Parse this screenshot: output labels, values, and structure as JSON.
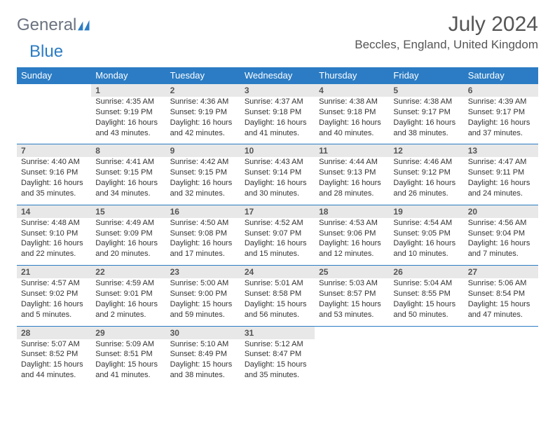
{
  "logo": {
    "part1": "General",
    "part2": "Blue"
  },
  "title": "July 2024",
  "location": "Beccles, England, United Kingdom",
  "colors": {
    "header_bg": "#2b7cc4",
    "header_text": "#ffffff",
    "daynum_bg": "#e8e8e8",
    "divider": "#2b7cc4",
    "text": "#333333",
    "title_text": "#555555"
  },
  "day_headers": [
    "Sunday",
    "Monday",
    "Tuesday",
    "Wednesday",
    "Thursday",
    "Friday",
    "Saturday"
  ],
  "weeks": [
    [
      null,
      {
        "n": "1",
        "sr": "4:35 AM",
        "ss": "9:19 PM",
        "dl": "16 hours and 43 minutes."
      },
      {
        "n": "2",
        "sr": "4:36 AM",
        "ss": "9:19 PM",
        "dl": "16 hours and 42 minutes."
      },
      {
        "n": "3",
        "sr": "4:37 AM",
        "ss": "9:18 PM",
        "dl": "16 hours and 41 minutes."
      },
      {
        "n": "4",
        "sr": "4:38 AM",
        "ss": "9:18 PM",
        "dl": "16 hours and 40 minutes."
      },
      {
        "n": "5",
        "sr": "4:38 AM",
        "ss": "9:17 PM",
        "dl": "16 hours and 38 minutes."
      },
      {
        "n": "6",
        "sr": "4:39 AM",
        "ss": "9:17 PM",
        "dl": "16 hours and 37 minutes."
      }
    ],
    [
      {
        "n": "7",
        "sr": "4:40 AM",
        "ss": "9:16 PM",
        "dl": "16 hours and 35 minutes."
      },
      {
        "n": "8",
        "sr": "4:41 AM",
        "ss": "9:15 PM",
        "dl": "16 hours and 34 minutes."
      },
      {
        "n": "9",
        "sr": "4:42 AM",
        "ss": "9:15 PM",
        "dl": "16 hours and 32 minutes."
      },
      {
        "n": "10",
        "sr": "4:43 AM",
        "ss": "9:14 PM",
        "dl": "16 hours and 30 minutes."
      },
      {
        "n": "11",
        "sr": "4:44 AM",
        "ss": "9:13 PM",
        "dl": "16 hours and 28 minutes."
      },
      {
        "n": "12",
        "sr": "4:46 AM",
        "ss": "9:12 PM",
        "dl": "16 hours and 26 minutes."
      },
      {
        "n": "13",
        "sr": "4:47 AM",
        "ss": "9:11 PM",
        "dl": "16 hours and 24 minutes."
      }
    ],
    [
      {
        "n": "14",
        "sr": "4:48 AM",
        "ss": "9:10 PM",
        "dl": "16 hours and 22 minutes."
      },
      {
        "n": "15",
        "sr": "4:49 AM",
        "ss": "9:09 PM",
        "dl": "16 hours and 20 minutes."
      },
      {
        "n": "16",
        "sr": "4:50 AM",
        "ss": "9:08 PM",
        "dl": "16 hours and 17 minutes."
      },
      {
        "n": "17",
        "sr": "4:52 AM",
        "ss": "9:07 PM",
        "dl": "16 hours and 15 minutes."
      },
      {
        "n": "18",
        "sr": "4:53 AM",
        "ss": "9:06 PM",
        "dl": "16 hours and 12 minutes."
      },
      {
        "n": "19",
        "sr": "4:54 AM",
        "ss": "9:05 PM",
        "dl": "16 hours and 10 minutes."
      },
      {
        "n": "20",
        "sr": "4:56 AM",
        "ss": "9:04 PM",
        "dl": "16 hours and 7 minutes."
      }
    ],
    [
      {
        "n": "21",
        "sr": "4:57 AM",
        "ss": "9:02 PM",
        "dl": "16 hours and 5 minutes."
      },
      {
        "n": "22",
        "sr": "4:59 AM",
        "ss": "9:01 PM",
        "dl": "16 hours and 2 minutes."
      },
      {
        "n": "23",
        "sr": "5:00 AM",
        "ss": "9:00 PM",
        "dl": "15 hours and 59 minutes."
      },
      {
        "n": "24",
        "sr": "5:01 AM",
        "ss": "8:58 PM",
        "dl": "15 hours and 56 minutes."
      },
      {
        "n": "25",
        "sr": "5:03 AM",
        "ss": "8:57 PM",
        "dl": "15 hours and 53 minutes."
      },
      {
        "n": "26",
        "sr": "5:04 AM",
        "ss": "8:55 PM",
        "dl": "15 hours and 50 minutes."
      },
      {
        "n": "27",
        "sr": "5:06 AM",
        "ss": "8:54 PM",
        "dl": "15 hours and 47 minutes."
      }
    ],
    [
      {
        "n": "28",
        "sr": "5:07 AM",
        "ss": "8:52 PM",
        "dl": "15 hours and 44 minutes."
      },
      {
        "n": "29",
        "sr": "5:09 AM",
        "ss": "8:51 PM",
        "dl": "15 hours and 41 minutes."
      },
      {
        "n": "30",
        "sr": "5:10 AM",
        "ss": "8:49 PM",
        "dl": "15 hours and 38 minutes."
      },
      {
        "n": "31",
        "sr": "5:12 AM",
        "ss": "8:47 PM",
        "dl": "15 hours and 35 minutes."
      },
      null,
      null,
      null
    ]
  ],
  "labels": {
    "sunrise": "Sunrise:",
    "sunset": "Sunset:",
    "daylight": "Daylight:"
  }
}
